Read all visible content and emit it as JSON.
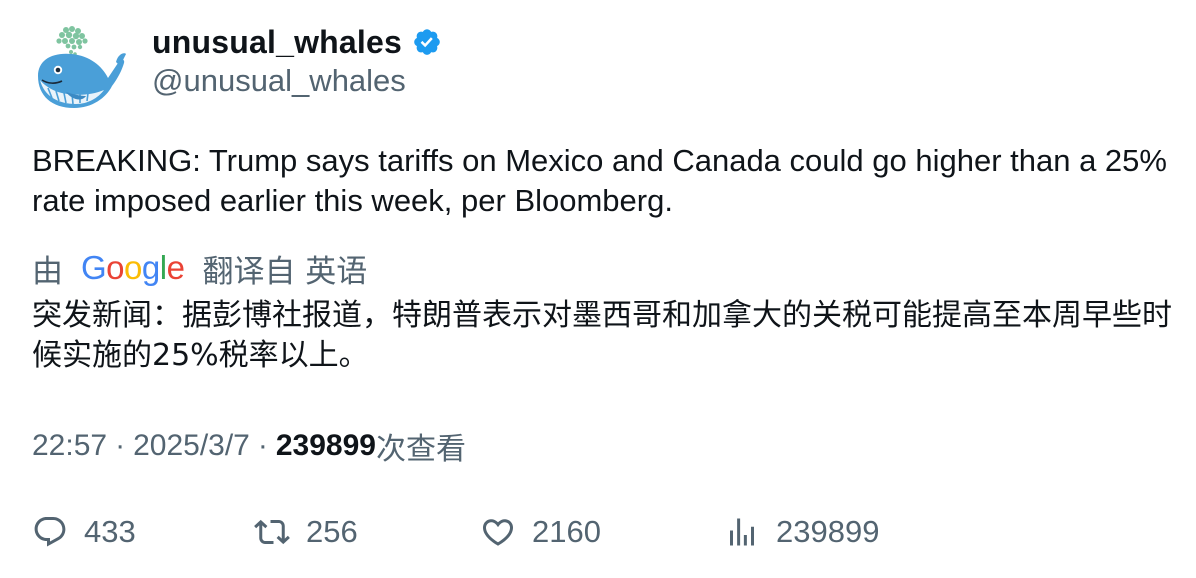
{
  "author": {
    "display_name": "unusual_whales",
    "handle": "@unusual_whales",
    "verified": true,
    "avatar_icon": "whale-icon",
    "verified_color": "#1d9bf0"
  },
  "tweet": {
    "text": "BREAKING: Trump says tariffs on Mexico and Canada could go higher than a 25% rate imposed earlier this week, per Bloomberg.",
    "translation": {
      "prefix": "由",
      "provider": "Google",
      "suffix": "翻译自 英语",
      "text": "突发新闻：据彭博社报道，特朗普表示对墨西哥和加拿大的关税可能提高至本周早些时候实施的25%税率以上。"
    },
    "time": "22:57",
    "separator": "·",
    "date": "2025/3/7",
    "views_count": "239899",
    "views_label": "次查看"
  },
  "actions": {
    "replies": "433",
    "retweets": "256",
    "likes": "2160",
    "views": "239899"
  },
  "colors": {
    "text_primary": "#0f1419",
    "text_secondary": "#536471",
    "whale_blue": "#4a9fd8",
    "spout_green": "#7fc4a0"
  }
}
